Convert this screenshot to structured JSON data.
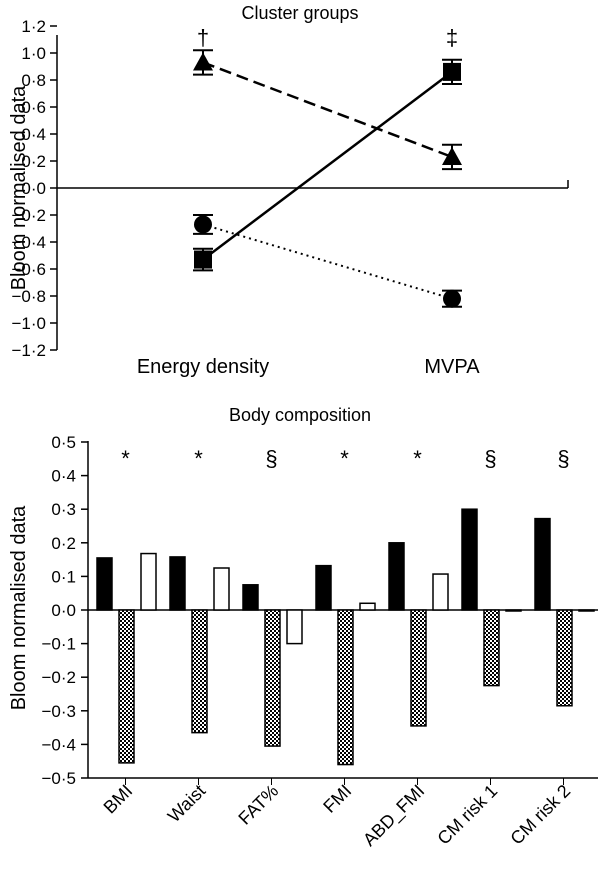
{
  "chart_data": [
    {
      "type": "line",
      "title": "Cluster groups",
      "xlabel": "",
      "ylabel": "Bloom normalised data",
      "categories": [
        "Energy density",
        "MVPA"
      ],
      "ylim": [
        -1.2,
        1.2
      ],
      "yticks": [
        "−1·2",
        "−1·0",
        "−0·8",
        "−0·6",
        "−0·4",
        "−0·2",
        "0·0",
        "0·2",
        "0·4",
        "0·6",
        "0·8",
        "1·0",
        "1·2"
      ],
      "grid": false,
      "series": [
        {
          "marker": "triangle",
          "line_style": "dashed",
          "values": [
            0.93,
            0.23
          ],
          "errors": [
            0.09,
            0.09
          ]
        },
        {
          "marker": "square",
          "line_style": "solid",
          "values": [
            -0.53,
            0.86
          ],
          "errors": [
            0.08,
            0.09
          ]
        },
        {
          "marker": "circle",
          "line_style": "dotted",
          "values": [
            -0.27,
            -0.82
          ],
          "errors": [
            0.07,
            0.06
          ]
        }
      ],
      "annotations": [
        {
          "category": "Energy density",
          "text": "†"
        },
        {
          "category": "MVPA",
          "text": "‡"
        }
      ]
    },
    {
      "type": "bar",
      "title": "Body composition",
      "xlabel": "",
      "ylabel": "Bloom normalised data",
      "categories": [
        "BMI",
        "Waist",
        "FAT%",
        "FMI",
        "ABD_FMI",
        "CM risk 1",
        "CM risk 2"
      ],
      "ylim": [
        -0.5,
        0.5
      ],
      "yticks": [
        "−0·5",
        "−0·4",
        "−0·3",
        "−0·2",
        "−0·1",
        "0·0",
        "0·1",
        "0·2",
        "0·3",
        "0·4",
        "0·5"
      ],
      "grid": false,
      "series": [
        {
          "fill": "black",
          "values": [
            0.155,
            0.158,
            0.075,
            0.132,
            0.2,
            0.3,
            0.272
          ]
        },
        {
          "fill": "checkered",
          "values": [
            -0.455,
            -0.365,
            -0.405,
            -0.46,
            -0.345,
            -0.225,
            -0.285
          ]
        },
        {
          "fill": "white",
          "values": [
            0.168,
            0.125,
            -0.1,
            0.02,
            0.107,
            0.0,
            0.0
          ]
        }
      ],
      "significance": [
        "*",
        "*",
        "§",
        "*",
        "*",
        "§",
        "§"
      ]
    }
  ]
}
